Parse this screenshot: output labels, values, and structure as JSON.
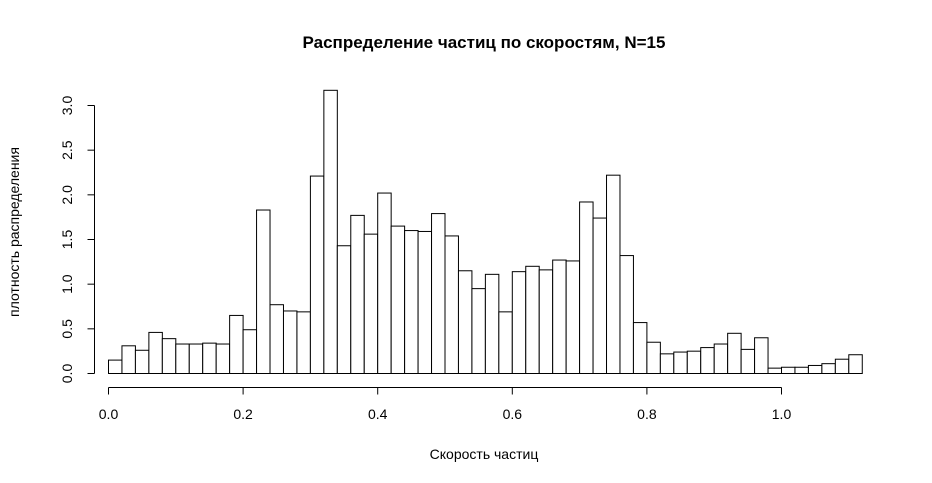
{
  "chart_data": {
    "type": "bar",
    "title": "Распределение частиц по скоростям, N=15",
    "xlabel": "Скорость частиц",
    "ylabel": "плотность распределения",
    "xlim": [
      0,
      1.12
    ],
    "ylim": [
      0,
      3.2
    ],
    "bin_width": 0.02,
    "bin_start": 0.0,
    "x_ticks": [
      "0.0",
      "0.2",
      "0.4",
      "0.6",
      "0.8",
      "1.0"
    ],
    "y_ticks": [
      "0.0",
      "0.5",
      "1.0",
      "1.5",
      "2.0",
      "2.5",
      "3.0"
    ],
    "grid": false,
    "bar_fill": "#ffffff",
    "bar_stroke": "#000000",
    "values": [
      0.15,
      0.31,
      0.26,
      0.46,
      0.39,
      0.33,
      0.33,
      0.34,
      0.33,
      0.65,
      0.49,
      1.83,
      0.77,
      0.7,
      0.69,
      2.21,
      3.17,
      1.43,
      1.77,
      1.56,
      2.02,
      1.65,
      1.6,
      1.59,
      1.79,
      1.54,
      1.15,
      0.95,
      1.11,
      0.69,
      1.14,
      1.2,
      1.16,
      1.27,
      1.26,
      1.92,
      1.74,
      2.22,
      1.32,
      0.57,
      0.35,
      0.22,
      0.24,
      0.25,
      0.29,
      0.33,
      0.45,
      0.27,
      0.4,
      0.06,
      0.07,
      0.07,
      0.09,
      0.11,
      0.16,
      0.21
    ]
  }
}
